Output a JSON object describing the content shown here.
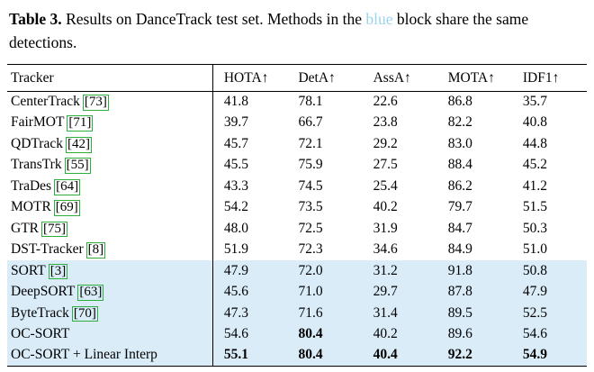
{
  "caption": {
    "label": "Table 3.",
    "text_before_blue": "Results on DanceTrack test set. Methods in the",
    "blue_word": "blue",
    "text_after_blue": "block share the same detections."
  },
  "colors": {
    "highlight_blue": "#d9ecf8",
    "blue_word": "#9bd4ec",
    "citation_green": "#2eae3c"
  },
  "table": {
    "columns": [
      "Tracker",
      "HOTA↑",
      "DetA↑",
      "AssA↑",
      "MOTA↑",
      "IDF1↑"
    ],
    "rows": [
      {
        "tracker": "CenterTrack",
        "cite": "73",
        "values": [
          "41.8",
          "78.1",
          "22.6",
          "86.8",
          "35.7"
        ],
        "bold": [
          false,
          false,
          false,
          false,
          false
        ],
        "highlight": false
      },
      {
        "tracker": "FairMOT",
        "cite": "71",
        "values": [
          "39.7",
          "66.7",
          "23.8",
          "82.2",
          "40.8"
        ],
        "bold": [
          false,
          false,
          false,
          false,
          false
        ],
        "highlight": false
      },
      {
        "tracker": "QDTrack",
        "cite": "42",
        "values": [
          "45.7",
          "72.1",
          "29.2",
          "83.0",
          "44.8"
        ],
        "bold": [
          false,
          false,
          false,
          false,
          false
        ],
        "highlight": false
      },
      {
        "tracker": "TransTrk",
        "cite": "55",
        "values": [
          "45.5",
          "75.9",
          "27.5",
          "88.4",
          "45.2"
        ],
        "bold": [
          false,
          false,
          false,
          false,
          false
        ],
        "highlight": false
      },
      {
        "tracker": "TraDes",
        "cite": "64",
        "values": [
          "43.3",
          "74.5",
          "25.4",
          "86.2",
          "41.2"
        ],
        "bold": [
          false,
          false,
          false,
          false,
          false
        ],
        "highlight": false
      },
      {
        "tracker": "MOTR",
        "cite": "69",
        "values": [
          "54.2",
          "73.5",
          "40.2",
          "79.7",
          "51.5"
        ],
        "bold": [
          false,
          false,
          false,
          false,
          false
        ],
        "highlight": false
      },
      {
        "tracker": "GTR",
        "cite": "75",
        "values": [
          "48.0",
          "72.5",
          "31.9",
          "84.7",
          "50.3"
        ],
        "bold": [
          false,
          false,
          false,
          false,
          false
        ],
        "highlight": false
      },
      {
        "tracker": "DST-Tracker",
        "cite": "8",
        "values": [
          "51.9",
          "72.3",
          "34.6",
          "84.9",
          "51.0"
        ],
        "bold": [
          false,
          false,
          false,
          false,
          false
        ],
        "highlight": false
      },
      {
        "tracker": "SORT",
        "cite": "3",
        "values": [
          "47.9",
          "72.0",
          "31.2",
          "91.8",
          "50.8"
        ],
        "bold": [
          false,
          false,
          false,
          false,
          false
        ],
        "highlight": true
      },
      {
        "tracker": "DeepSORT",
        "cite": "63",
        "values": [
          "45.6",
          "71.0",
          "29.7",
          "87.8",
          "47.9"
        ],
        "bold": [
          false,
          false,
          false,
          false,
          false
        ],
        "highlight": true
      },
      {
        "tracker": "ByteTrack",
        "cite": "70",
        "values": [
          "47.3",
          "71.6",
          "31.4",
          "89.5",
          "52.5"
        ],
        "bold": [
          false,
          false,
          false,
          false,
          false
        ],
        "highlight": true
      },
      {
        "tracker": "OC-SORT",
        "cite": null,
        "values": [
          "54.6",
          "80.4",
          "40.2",
          "89.6",
          "54.6"
        ],
        "bold": [
          false,
          true,
          false,
          false,
          false
        ],
        "highlight": true
      },
      {
        "tracker": "OC-SORT + Linear Interp",
        "cite": null,
        "values": [
          "55.1",
          "80.4",
          "40.4",
          "92.2",
          "54.9"
        ],
        "bold": [
          true,
          true,
          true,
          true,
          true
        ],
        "highlight": true
      }
    ]
  }
}
